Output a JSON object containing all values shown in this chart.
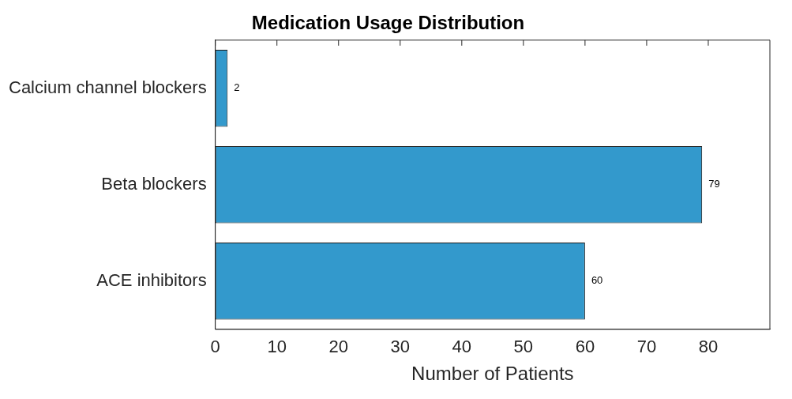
{
  "chart_data": {
    "type": "bar",
    "orientation": "horizontal",
    "title": "Medication Usage Distribution",
    "xlabel": "Number of Patients",
    "categories": [
      "Calcium channel blockers",
      "Beta blockers",
      "ACE inhibitors"
    ],
    "values": [
      2,
      79,
      60
    ],
    "color": "#3399cc",
    "data_labels": true,
    "grid": false,
    "xlim": [
      0,
      90
    ],
    "xticks": [
      0,
      10,
      20,
      30,
      40,
      50,
      60,
      70,
      80
    ]
  }
}
